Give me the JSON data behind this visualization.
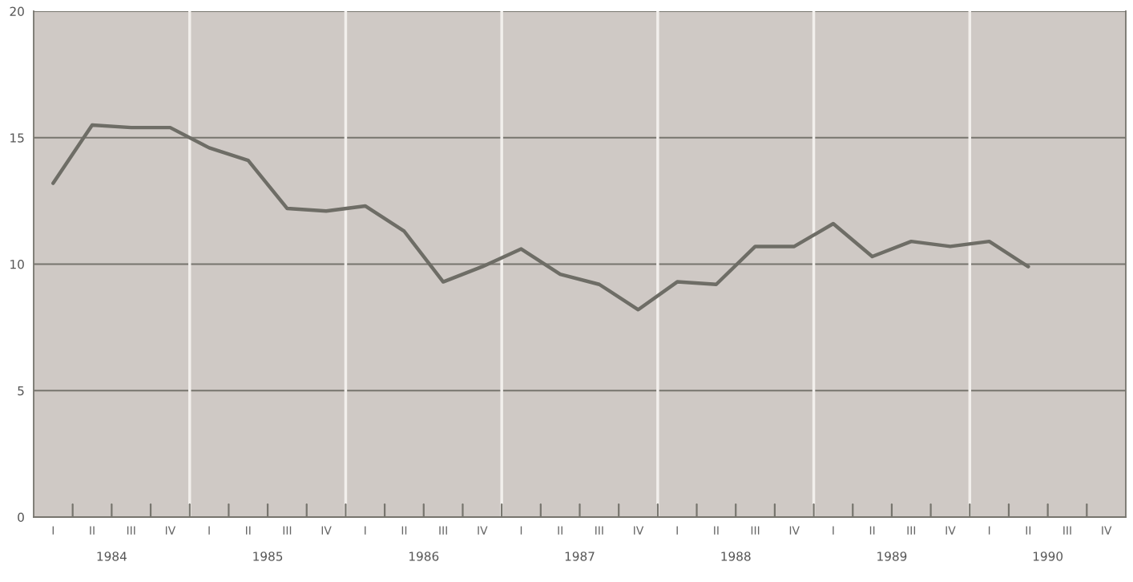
{
  "chart_data": {
    "type": "line",
    "categories": [
      "I",
      "II",
      "III",
      "IV",
      "I",
      "II",
      "III",
      "IV",
      "I",
      "II",
      "III",
      "IV",
      "I",
      "II",
      "III",
      "IV",
      "I",
      "II",
      "III",
      "IV",
      "I",
      "II",
      "III",
      "IV",
      "I",
      "II",
      "III",
      "IV"
    ],
    "series": [
      {
        "color": "#6e6d66",
        "values": [
          13.2,
          15.5,
          15.4,
          15.4,
          14.6,
          14.1,
          12.2,
          12.1,
          12.3,
          11.3,
          9.3,
          9.9,
          10.6,
          9.6,
          9.2,
          8.2,
          9.3,
          9.2,
          10.7,
          10.7,
          11.6,
          10.3,
          10.9,
          10.7,
          10.9,
          9.9,
          null,
          null
        ]
      }
    ],
    "annotations": [
      "1984",
      "1985",
      "1986",
      "1987",
      "1988",
      "1989",
      "1990"
    ],
    "ylim": [
      0,
      20
    ],
    "yticks": [
      0,
      5,
      10,
      15,
      20
    ],
    "grid": "y",
    "legend": false,
    "marker": "none",
    "line_style": "solid"
  }
}
